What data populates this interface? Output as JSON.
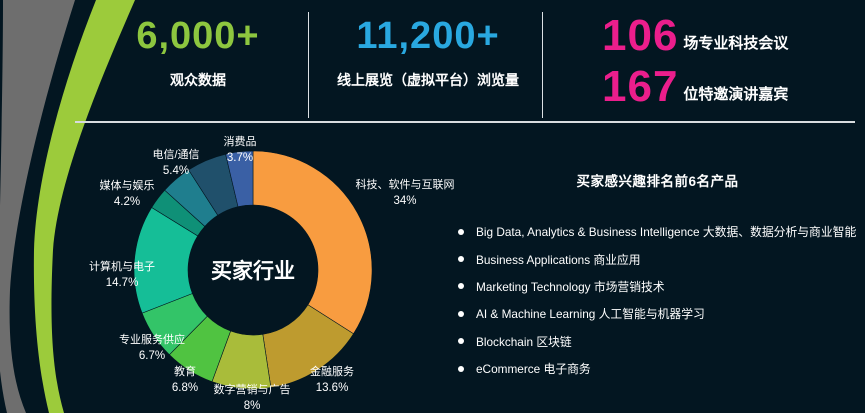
{
  "stats": [
    {
      "value": "6,000+",
      "label": "观众数据",
      "color": "#8DC63F"
    },
    {
      "value": "11,200+",
      "label": "线上展览（虚拟平台）浏览量",
      "color": "#29A8E0"
    }
  ],
  "highlight_color": "#EB1E8C",
  "highlights": [
    {
      "value": "106",
      "label": "场专业科技会议"
    },
    {
      "value": "167",
      "label": "位特邀演讲嘉宾"
    }
  ],
  "chart_data": {
    "type": "pie",
    "subtype": "donut",
    "title": "买家行业",
    "legend_position": "around",
    "segments": [
      {
        "label": "科技、软件与互联网",
        "value": 34,
        "display": "34%",
        "color": "#F89C40"
      },
      {
        "label": "金融服务",
        "value": 13.6,
        "display": "13.6%",
        "color": "#BE9B2F"
      },
      {
        "label": "数字营销与广告",
        "value": 8,
        "display": "8%",
        "color": "#A9BC3A"
      },
      {
        "label": "教育",
        "value": 6.8,
        "display": "6.8%",
        "color": "#50C341"
      },
      {
        "label": "专业服务供应",
        "value": 6.7,
        "display": "6.7%",
        "color": "#33C468"
      },
      {
        "label": "计算机与电子",
        "value": 14.7,
        "display": "14.7%",
        "color": "#15BE97"
      },
      {
        "label": "",
        "value": 2.9,
        "display": "",
        "color": "#0F9077"
      },
      {
        "label": "媒体与娱乐",
        "value": 4.2,
        "display": "4.2%",
        "color": "#1F7E8E"
      },
      {
        "label": "电信/通信",
        "value": 5.4,
        "display": "5.4%",
        "color": "#20506B"
      },
      {
        "label": "消费品",
        "value": 3.7,
        "display": "3.7%",
        "color": "#3A60A5"
      }
    ]
  },
  "products": {
    "title": "买家感兴趣排名前6名产品",
    "items": [
      "Big Data, Analytics & Business Intelligence 大数据、数据分析与商业智能",
      "Business Applications 商业应用",
      "Marketing Technology 市场营销技术",
      "AI & Machine Learning 人工智能与机器学习",
      "Blockchain 区块链",
      "eCommerce 电子商务"
    ]
  },
  "decor": {
    "stripe_green": "#9CCB3B",
    "stripe_gray": "#6E6E6E"
  }
}
